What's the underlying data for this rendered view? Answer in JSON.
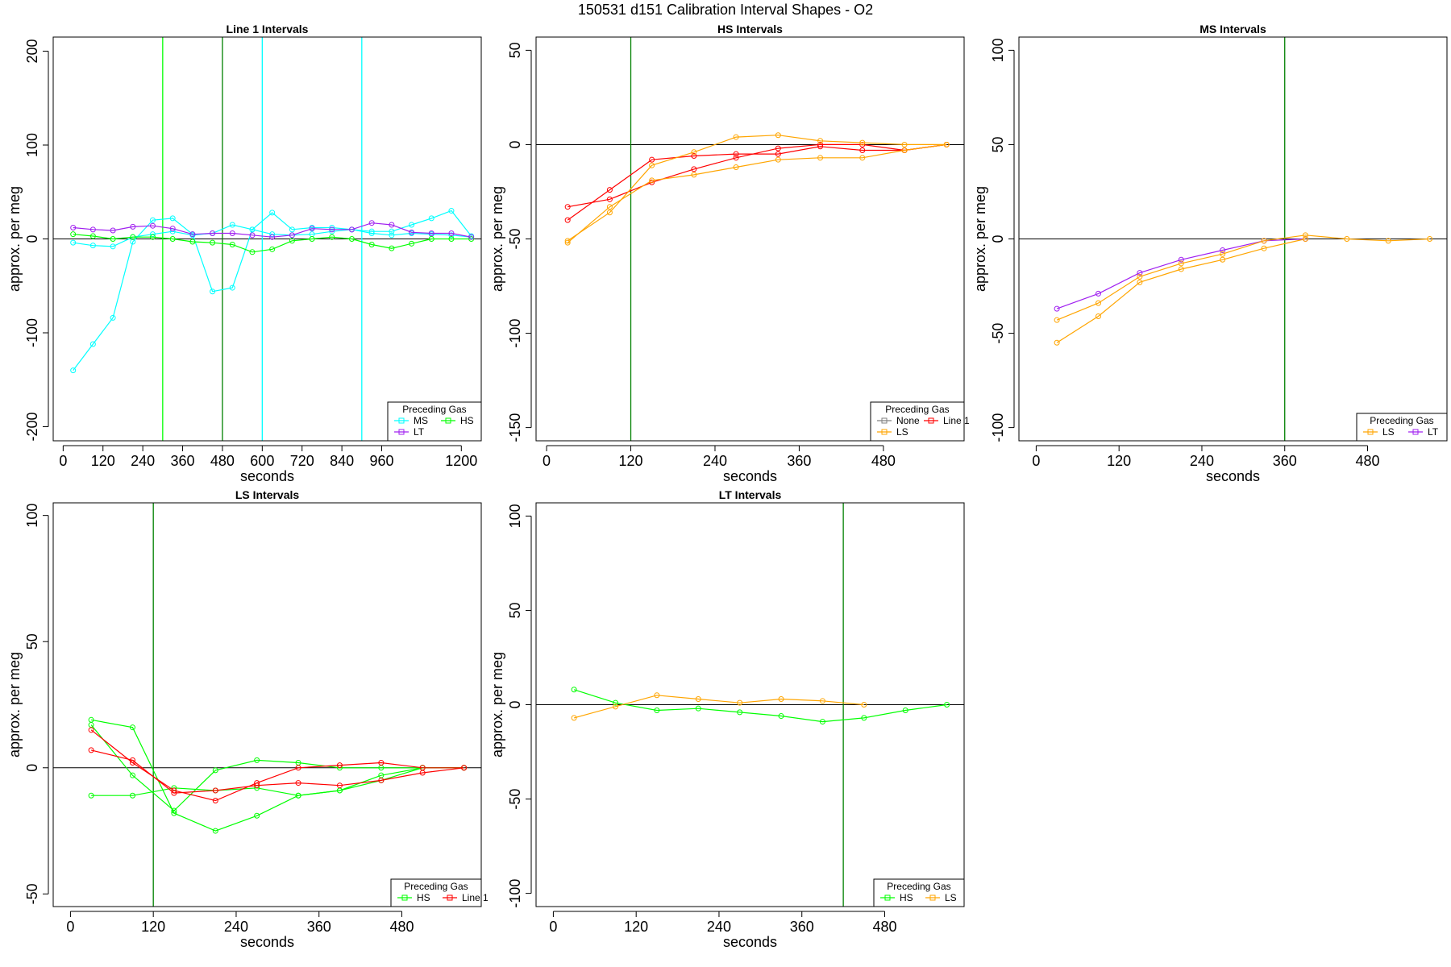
{
  "suptitle": "150531   d151   Calibration Interval Shapes - O2",
  "colors": {
    "MS": "#00ffff",
    "HS": "#00ff00",
    "LT": "#a020f0",
    "LS": "#ffa500",
    "Line 1": "#ff0000",
    "None": "#808080",
    "vline": "#008000",
    "vline_alt": "#00ffff"
  },
  "chart_data": [
    {
      "type": "line",
      "title": "Line 1 Intervals",
      "xlabel": "seconds",
      "ylabel": "approx. per meg",
      "xlim": [
        -30,
        1260
      ],
      "ylim": [
        -215,
        215
      ],
      "xticks": [
        0,
        120,
        240,
        360,
        480,
        600,
        720,
        840,
        960,
        1200
      ],
      "yticks": [
        -200,
        -100,
        0,
        100,
        200
      ],
      "hline": 0,
      "vlines": [
        {
          "x": 300,
          "color": "#00ff00"
        },
        {
          "x": 480,
          "color": "#008000"
        },
        {
          "x": 600,
          "color": "#00ffff"
        },
        {
          "x": 900,
          "color": "#00ffff"
        }
      ],
      "legend": {
        "title": "Preceding Gas",
        "position": "bottom-right",
        "entries": [
          {
            "label": "MS",
            "color": "#00ffff"
          },
          {
            "label": "HS",
            "color": "#00ff00"
          },
          {
            "label": "LT",
            "color": "#a020f0"
          }
        ]
      },
      "series": [
        {
          "color": "#00ffff",
          "x": [
            30,
            90,
            150,
            210,
            270,
            330,
            390,
            450,
            510,
            570,
            630,
            690,
            750,
            810,
            870,
            930,
            990,
            1050,
            1110,
            1170,
            1230
          ],
          "y": [
            -140,
            -112,
            -84,
            -3,
            20,
            22,
            5,
            -56,
            -52,
            10,
            28,
            10,
            12,
            12,
            10,
            8,
            8,
            15,
            22,
            30,
            3
          ]
        },
        {
          "color": "#00ffff",
          "x": [
            30,
            90,
            150,
            210,
            270,
            330,
            390,
            450,
            510,
            570,
            630,
            690,
            750,
            810,
            870,
            930,
            990,
            1050,
            1110,
            1170,
            1230
          ],
          "y": [
            -4,
            -7,
            -8,
            2,
            5,
            8,
            4,
            6,
            15,
            10,
            5,
            4,
            5,
            8,
            10,
            6,
            4,
            6,
            5,
            4,
            2
          ]
        },
        {
          "color": "#00ff00",
          "x": [
            30,
            90,
            150,
            210,
            270,
            330,
            390,
            450,
            510,
            570,
            630,
            690,
            750,
            810,
            870,
            930,
            990,
            1050,
            1110,
            1170,
            1230
          ],
          "y": [
            5,
            3,
            0,
            2,
            2,
            0,
            -3,
            -4,
            -6,
            -14,
            -11,
            -2,
            0,
            2,
            0,
            -6,
            -10,
            -5,
            0,
            0,
            0
          ]
        },
        {
          "color": "#a020f0",
          "x": [
            30,
            90,
            150,
            210,
            270,
            330,
            390,
            450,
            510,
            570,
            630,
            690,
            750,
            810,
            870,
            930,
            990,
            1050,
            1110,
            1170,
            1230
          ],
          "y": [
            12,
            10,
            9,
            13,
            14,
            11,
            5,
            6,
            6,
            4,
            2,
            4,
            11,
            10,
            10,
            17,
            15,
            7,
            6,
            6,
            2
          ]
        }
      ]
    },
    {
      "type": "line",
      "title": "HS Intervals",
      "xlabel": "seconds",
      "ylabel": "approx. per meg",
      "xlim": [
        -15,
        595
      ],
      "ylim": [
        -157,
        57
      ],
      "xticks": [
        0,
        120,
        240,
        360,
        480
      ],
      "yticks": [
        -150,
        -100,
        -50,
        0,
        50
      ],
      "hline": 0,
      "vlines": [
        {
          "x": 120,
          "color": "#008000"
        }
      ],
      "legend": {
        "title": "Preceding Gas",
        "position": "bottom-right",
        "entries": [
          {
            "label": "None",
            "color": "#808080"
          },
          {
            "label": "Line 1",
            "color": "#ff0000"
          },
          {
            "label": "LS",
            "color": "#ffa500"
          }
        ]
      },
      "series": [
        {
          "color": "#ff0000",
          "x": [
            30,
            90,
            150,
            210,
            270,
            330,
            390,
            450,
            510,
            570
          ],
          "y": [
            -40,
            -24,
            -8,
            -6,
            -5,
            -5,
            -1,
            -3,
            -3,
            0
          ]
        },
        {
          "color": "#ff0000",
          "x": [
            30,
            90,
            150,
            210,
            270,
            330,
            390,
            450,
            510,
            570
          ],
          "y": [
            -33,
            -29,
            -20,
            -13,
            -7,
            -2,
            0,
            0,
            -3,
            0
          ]
        },
        {
          "color": "#ffa500",
          "x": [
            30,
            90,
            150,
            210,
            270,
            330,
            390,
            450,
            510,
            570
          ],
          "y": [
            -51,
            -36,
            -11,
            -4,
            4,
            5,
            2,
            1,
            0,
            0
          ]
        },
        {
          "color": "#ffa500",
          "x": [
            30,
            90,
            150,
            210,
            270,
            330,
            390,
            450,
            510,
            570
          ],
          "y": [
            -52,
            -33,
            -19,
            -16,
            -12,
            -8,
            -7,
            -7,
            -3,
            0
          ]
        }
      ]
    },
    {
      "type": "line",
      "title": "MS Intervals",
      "xlabel": "seconds",
      "ylabel": "approx. per meg",
      "xlim": [
        -25,
        595
      ],
      "ylim": [
        -107,
        107
      ],
      "xticks": [
        0,
        120,
        240,
        360,
        480
      ],
      "yticks": [
        -100,
        -50,
        0,
        50,
        100
      ],
      "hline": 0,
      "vlines": [
        {
          "x": 360,
          "color": "#008000"
        }
      ],
      "legend": {
        "title": "Preceding Gas",
        "position": "bottom-right",
        "entries": [
          {
            "label": "LS",
            "color": "#ffa500"
          },
          {
            "label": "LT",
            "color": "#a020f0"
          }
        ]
      },
      "series": [
        {
          "color": "#a020f0",
          "x": [
            30,
            90,
            150,
            210,
            270,
            330,
            390
          ],
          "y": [
            -37,
            -29,
            -18,
            -11,
            -6,
            -1,
            0
          ]
        },
        {
          "color": "#ffa500",
          "x": [
            30,
            90,
            150,
            210,
            270,
            330,
            390,
            450,
            510,
            570
          ],
          "y": [
            -43,
            -34,
            -20,
            -13,
            -8,
            -1,
            2,
            0,
            -1,
            0
          ]
        },
        {
          "color": "#ffa500",
          "x": [
            30,
            90,
            150,
            210,
            270,
            330,
            390
          ],
          "y": [
            -55,
            -41,
            -23,
            -16,
            -11,
            -5,
            0
          ]
        }
      ]
    },
    {
      "type": "line",
      "title": "LS Intervals",
      "xlabel": "seconds",
      "ylabel": "approx. per meg",
      "xlim": [
        -25,
        595
      ],
      "ylim": [
        -55,
        105
      ],
      "xticks": [
        0,
        120,
        240,
        360,
        480
      ],
      "yticks": [
        -50,
        0,
        50,
        100
      ],
      "hline": 0,
      "vlines": [
        {
          "x": 120,
          "color": "#008000"
        }
      ],
      "legend": {
        "title": "Preceding Gas",
        "position": "bottom-right",
        "entries": [
          {
            "label": "HS",
            "color": "#00ff00"
          },
          {
            "label": "Line 1",
            "color": "#ff0000"
          }
        ]
      },
      "series": [
        {
          "color": "#00ff00",
          "x": [
            30,
            90,
            150,
            210,
            270,
            330,
            390,
            450,
            510,
            570
          ],
          "y": [
            19,
            16,
            -18,
            -25,
            -19,
            -11,
            -9,
            -3,
            0,
            0
          ]
        },
        {
          "color": "#00ff00",
          "x": [
            30,
            90,
            150,
            210,
            270,
            330,
            390,
            450,
            510,
            570
          ],
          "y": [
            17,
            -3,
            -17,
            -1,
            3,
            2,
            0,
            0,
            0,
            0
          ]
        },
        {
          "color": "#00ff00",
          "x": [
            30,
            90,
            150,
            210,
            270,
            330,
            390,
            450,
            510,
            570
          ],
          "y": [
            -11,
            -11,
            -8,
            -9,
            -8,
            -11,
            -9,
            -5,
            0,
            0
          ]
        },
        {
          "color": "#ff0000",
          "x": [
            30,
            90,
            150,
            210,
            270,
            330,
            390,
            450,
            510,
            570
          ],
          "y": [
            15,
            2,
            -9,
            -13,
            -6,
            0,
            1,
            2,
            0,
            0
          ]
        },
        {
          "color": "#ff0000",
          "x": [
            30,
            90,
            150,
            210,
            270,
            330,
            390,
            450,
            510,
            570
          ],
          "y": [
            7,
            3,
            -10,
            -9,
            -7,
            -6,
            -7,
            -5,
            -2,
            0
          ]
        }
      ]
    },
    {
      "type": "line",
      "title": "LT Intervals",
      "xlabel": "seconds",
      "ylabel": "approx. per meg",
      "xlim": [
        -25,
        595
      ],
      "ylim": [
        -107,
        107
      ],
      "xticks": [
        0,
        120,
        240,
        360,
        480
      ],
      "yticks": [
        -100,
        -50,
        0,
        50,
        100
      ],
      "hline": 0,
      "vlines": [
        {
          "x": 420,
          "color": "#008000"
        }
      ],
      "legend": {
        "title": "Preceding Gas",
        "position": "bottom-right",
        "entries": [
          {
            "label": "HS",
            "color": "#00ff00"
          },
          {
            "label": "LS",
            "color": "#ffa500"
          }
        ]
      },
      "series": [
        {
          "color": "#00ff00",
          "x": [
            30,
            90,
            150,
            210,
            270,
            330,
            390,
            450,
            510,
            570
          ],
          "y": [
            8,
            1,
            -3,
            -2,
            -4,
            -6,
            -9,
            -7,
            -3,
            0
          ]
        },
        {
          "color": "#ffa500",
          "x": [
            30,
            90,
            150,
            210,
            270,
            330,
            390,
            450
          ],
          "y": [
            -7,
            -1,
            5,
            3,
            1,
            3,
            2,
            0
          ]
        }
      ]
    }
  ]
}
